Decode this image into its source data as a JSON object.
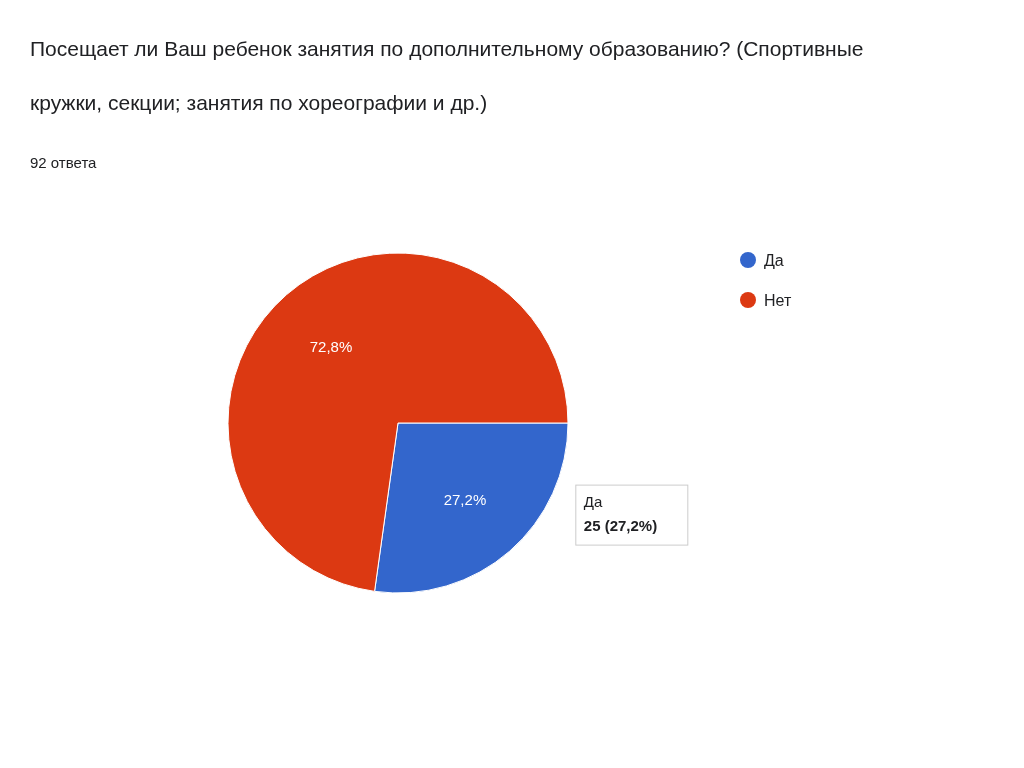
{
  "chart_data": {
    "type": "pie",
    "title": "Посещает ли Ваш ребенок занятия по дополнительному образованию? (Спортивные кружки, секции; занятия по хореографии и др.)",
    "subtitle": "92 ответа",
    "categories": [
      "Да",
      "Нет"
    ],
    "values": [
      27.2,
      72.8
    ],
    "colors": [
      "#3366cc",
      "#dc3912"
    ],
    "value_labels": [
      "27,2%",
      "72,8%"
    ],
    "annotations": [
      {
        "text": "Да\n25 (27,2%)",
        "x": "Да"
      }
    ],
    "legend": "right"
  }
}
